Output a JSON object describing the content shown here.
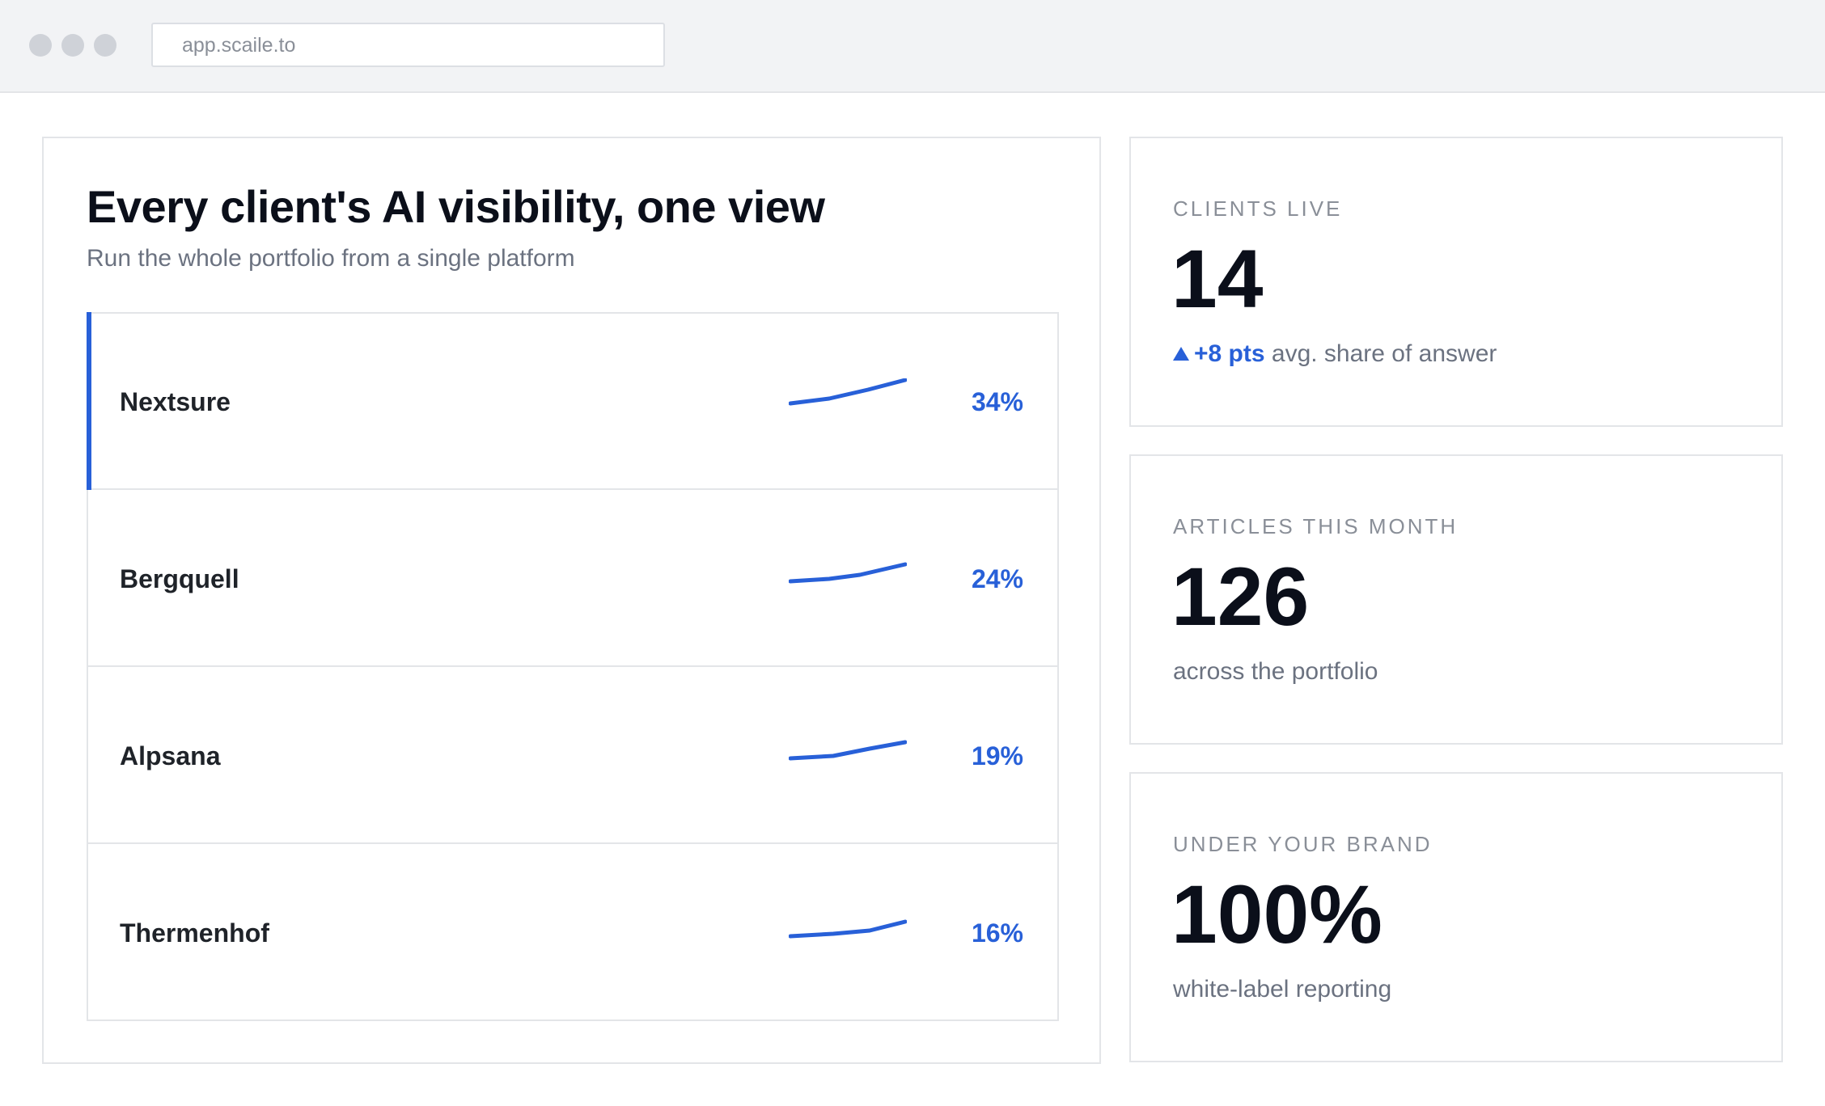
{
  "browser": {
    "url": "app.scaile.to"
  },
  "panel": {
    "title": "Every client's AI visibility, one view",
    "subtitle": "Run the whole portfolio from a single platform"
  },
  "clients": [
    {
      "name": "Nextsure",
      "share": "34%",
      "active": true
    },
    {
      "name": "Bergquell",
      "share": "24%",
      "active": false
    },
    {
      "name": "Alpsana",
      "share": "19%",
      "active": false
    },
    {
      "name": "Thermenhof",
      "share": "16%",
      "active": false
    }
  ],
  "stats": {
    "clients_live": {
      "label": "CLIENTS LIVE",
      "value": "14",
      "delta": "+8 pts",
      "note": "avg. share of answer"
    },
    "articles": {
      "label": "ARTICLES THIS MONTH",
      "value": "126",
      "note": "across the portfolio"
    },
    "brand": {
      "label": "UNDER YOUR BRAND",
      "value": "100%",
      "note": "white-label reporting"
    }
  },
  "colors": {
    "accent": "#2860d8",
    "border": "#e3e5e8",
    "muted": "#6b7280"
  },
  "icons": {
    "delta": "triangle-up-icon"
  }
}
